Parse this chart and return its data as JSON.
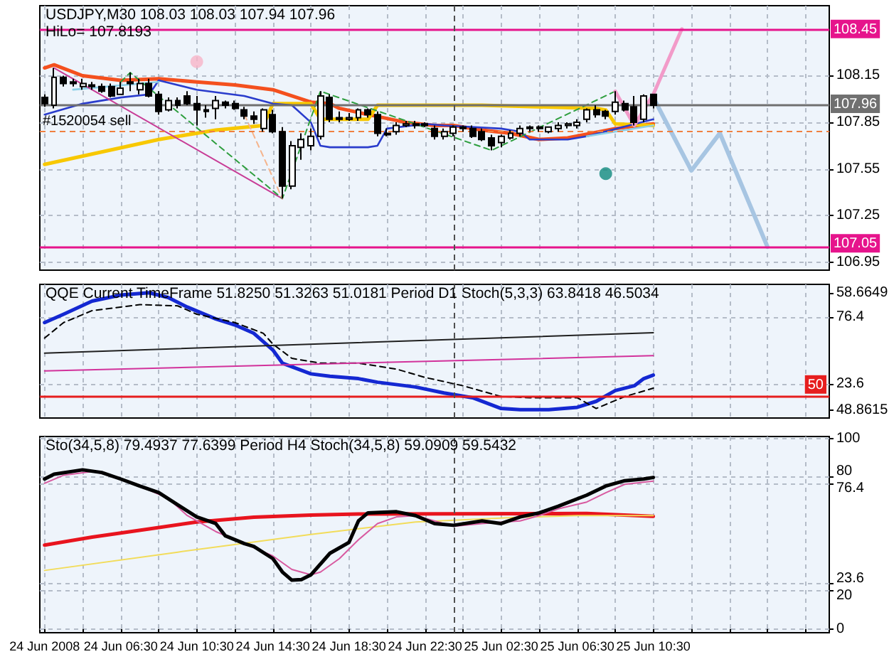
{
  "chart_data": [
    {
      "type": "candlestick",
      "title": "USDJPY,M30 108.03 108.03 107.94 107.96",
      "annotations": [
        "HiLo= 107.8193"
      ],
      "color": "#000000",
      "marker": "none",
      "grid": true,
      "tick_labels": "y",
      "x": [
        "2008-06-24T02:30",
        "2008-06-24T03:00",
        "2008-06-24T03:30",
        "2008-06-24T04:00",
        "2008-06-24T04:30",
        "2008-06-24T05:00",
        "2008-06-24T05:30",
        "2008-06-24T06:00",
        "2008-06-24T06:30",
        "2008-06-24T07:00",
        "2008-06-24T07:30",
        "2008-06-24T08:00",
        "2008-06-24T08:30",
        "2008-06-24T09:00",
        "2008-06-24T09:30",
        "2008-06-24T10:00",
        "2008-06-24T10:30",
        "2008-06-24T11:00",
        "2008-06-24T11:30",
        "2008-06-24T12:00",
        "2008-06-24T12:30",
        "2008-06-24T13:00",
        "2008-06-24T13:30",
        "2008-06-24T14:00",
        "2008-06-24T14:30",
        "2008-06-24T15:00",
        "2008-06-24T15:30",
        "2008-06-24T16:00",
        "2008-06-24T16:30",
        "2008-06-24T17:00",
        "2008-06-24T17:30",
        "2008-06-24T18:00",
        "2008-06-24T18:30",
        "2008-06-24T19:00",
        "2008-06-24T19:30",
        "2008-06-24T20:00",
        "2008-06-24T20:30",
        "2008-06-24T21:00",
        "2008-06-24T21:30",
        "2008-06-24T22:00",
        "2008-06-24T22:30",
        "2008-06-24T23:00",
        "2008-06-24T23:30",
        "2008-06-25T00:00",
        "2008-06-25T00:30",
        "2008-06-25T01:00",
        "2008-06-25T01:30",
        "2008-06-25T02:00",
        "2008-06-25T02:30",
        "2008-06-25T03:00",
        "2008-06-25T03:30",
        "2008-06-25T04:00",
        "2008-06-25T04:30",
        "2008-06-25T05:00",
        "2008-06-25T05:30",
        "2008-06-25T06:00",
        "2008-06-25T06:30",
        "2008-06-25T07:00",
        "2008-06-25T07:30",
        "2008-06-25T08:00",
        "2008-06-25T08:30",
        "2008-06-25T09:00",
        "2008-06-25T09:30",
        "2008-06-25T10:00",
        "2008-06-25T10:30"
      ],
      "ohlc": [
        [
          108.01,
          108.03,
          107.95,
          107.97
        ],
        [
          107.96,
          108.2,
          107.94,
          108.14
        ],
        [
          108.14,
          108.15,
          108.08,
          108.1
        ],
        [
          108.11,
          108.13,
          108.08,
          108.1
        ],
        [
          108.08,
          108.13,
          108.06,
          108.1
        ],
        [
          108.09,
          108.11,
          108.06,
          108.08
        ],
        [
          108.08,
          108.1,
          108.04,
          108.05
        ],
        [
          108.08,
          108.1,
          108.01,
          108.02
        ],
        [
          108.03,
          108.11,
          108.03,
          108.07
        ],
        [
          108.11,
          108.17,
          108.05,
          108.1
        ],
        [
          108.06,
          108.13,
          108.03,
          108.1
        ],
        [
          108.1,
          108.13,
          108.01,
          108.02
        ],
        [
          108.03,
          108.05,
          107.9,
          107.92
        ],
        [
          107.93,
          108.01,
          107.92,
          107.99
        ],
        [
          107.99,
          108.01,
          107.94,
          107.96
        ],
        [
          108.02,
          108.05,
          107.96,
          107.97
        ],
        [
          107.97,
          108.02,
          107.83,
          107.93
        ],
        [
          107.93,
          107.96,
          107.88,
          107.92
        ],
        [
          107.94,
          108.02,
          107.87,
          107.99
        ],
        [
          107.98,
          107.99,
          107.94,
          107.96
        ],
        [
          107.97,
          107.99,
          107.93,
          107.94
        ],
        [
          107.93,
          107.95,
          107.87,
          107.89
        ],
        [
          107.89,
          107.92,
          107.84,
          107.87
        ],
        [
          107.81,
          107.94,
          107.79,
          107.93
        ],
        [
          107.9,
          107.93,
          107.78,
          107.79
        ],
        [
          107.79,
          107.82,
          107.36,
          107.44
        ],
        [
          107.44,
          107.73,
          107.42,
          107.7
        ],
        [
          107.69,
          107.78,
          107.61,
          107.74
        ],
        [
          107.7,
          107.81,
          107.67,
          107.76
        ],
        [
          107.76,
          108.05,
          107.74,
          108.02
        ],
        [
          108.01,
          108.03,
          107.85,
          107.87
        ],
        [
          107.88,
          107.92,
          107.85,
          107.87
        ],
        [
          107.87,
          107.91,
          107.86,
          107.88
        ],
        [
          107.88,
          107.94,
          107.86,
          107.93
        ],
        [
          107.93,
          107.94,
          107.88,
          107.9
        ],
        [
          107.9,
          107.92,
          107.76,
          107.78
        ],
        [
          107.78,
          107.81,
          107.76,
          107.77
        ],
        [
          107.79,
          107.85,
          107.77,
          107.83
        ],
        [
          107.83,
          107.86,
          107.82,
          107.84
        ],
        [
          107.84,
          107.86,
          107.81,
          107.83
        ],
        [
          107.84,
          107.85,
          107.82,
          107.83
        ],
        [
          107.81,
          107.83,
          107.74,
          107.76
        ],
        [
          107.76,
          107.81,
          107.74,
          107.79
        ],
        [
          107.78,
          107.83,
          107.76,
          107.82
        ],
        [
          107.81,
          107.83,
          107.79,
          107.82
        ],
        [
          107.81,
          107.83,
          107.75,
          107.76
        ],
        [
          107.79,
          107.81,
          107.73,
          107.74
        ],
        [
          107.75,
          107.77,
          107.67,
          107.7
        ],
        [
          107.72,
          107.77,
          107.69,
          107.76
        ],
        [
          107.75,
          107.8,
          107.74,
          107.78
        ],
        [
          107.78,
          107.83,
          107.76,
          107.81
        ],
        [
          107.81,
          107.83,
          107.79,
          107.82
        ],
        [
          107.82,
          107.83,
          107.79,
          107.81
        ],
        [
          107.79,
          107.82,
          107.78,
          107.82
        ],
        [
          107.81,
          107.85,
          107.79,
          107.83
        ],
        [
          107.83,
          107.85,
          107.81,
          107.84
        ],
        [
          107.83,
          107.87,
          107.81,
          107.85
        ],
        [
          107.87,
          107.94,
          107.85,
          107.93
        ],
        [
          107.93,
          107.96,
          107.88,
          107.9
        ],
        [
          107.92,
          107.93,
          107.87,
          107.89
        ],
        [
          107.92,
          108.05,
          107.9,
          107.98
        ],
        [
          107.97,
          107.99,
          107.92,
          107.93
        ],
        [
          107.95,
          108.02,
          107.83,
          107.85
        ],
        [
          107.87,
          108.03,
          107.85,
          108.02
        ],
        [
          108.03,
          108.03,
          107.94,
          107.96
        ]
      ],
      "series": [
        {
          "type": "line",
          "color": "#f4501e",
          "x": [
            "2008-06-24T02:30",
            "2008-06-24T03:00",
            "2008-06-24T04:30",
            "2008-06-24T06:30",
            "2008-06-24T08:30",
            "2008-06-24T10:30",
            "2008-06-24T12:30",
            "2008-06-24T14:30",
            "2008-06-24T16:30",
            "2008-06-24T17:30",
            "2008-06-24T18:00",
            "2008-06-24T19:30",
            "2008-06-24T21:30",
            "2008-06-24T23:00",
            "2008-06-25T00:00",
            "2008-06-25T01:30",
            "2008-06-25T03:00",
            "2008-06-25T04:30",
            "2008-06-25T06:00",
            "2008-06-25T08:30",
            "2008-06-25T10:30"
          ],
          "values": [
            108.2,
            108.22,
            108.15,
            108.12,
            108.13,
            108.11,
            108.09,
            108.06,
            107.98,
            107.97,
            107.94,
            107.9,
            107.85,
            107.83,
            107.83,
            107.8,
            107.78,
            107.74,
            107.75,
            107.81,
            107.84
          ]
        },
        {
          "type": "line",
          "color": "#f8c800",
          "x": [
            "2008-06-24T02:30",
            "2008-06-24T05:30",
            "2008-06-24T08:30",
            "2008-06-24T11:30",
            "2008-06-24T14:00",
            "2008-06-24T14:30",
            "2008-06-24T16:30",
            "2008-06-24T17:00",
            "2008-06-24T19:30",
            "2008-06-24T20:00",
            "2008-06-25T01:30",
            "2008-06-25T07:30",
            "2008-06-25T08:00",
            "2008-06-25T08:30",
            "2008-06-25T10:30"
          ],
          "values": [
            107.58,
            107.66,
            107.74,
            107.8,
            107.83,
            107.97,
            107.97,
            107.87,
            107.87,
            107.96,
            107.96,
            107.94,
            107.93,
            107.84,
            107.83
          ]
        },
        {
          "type": "line",
          "color": "#2a3ccc",
          "x": [
            "2008-06-24T02:30",
            "2008-06-24T04:30",
            "2008-06-24T06:30",
            "2008-06-24T08:00",
            "2008-06-24T08:30",
            "2008-06-24T10:30",
            "2008-06-24T13:00",
            "2008-06-24T14:30",
            "2008-06-24T15:30",
            "2008-06-24T16:30",
            "2008-06-24T17:00",
            "2008-06-24T17:30",
            "2008-06-24T19:30",
            "2008-06-24T20:00",
            "2008-06-24T20:30",
            "2008-06-24T22:30",
            "2008-06-24T23:30",
            "2008-06-25T02:30",
            "2008-06-25T03:30",
            "2008-06-25T04:00",
            "2008-06-25T06:00",
            "2008-06-25T07:00",
            "2008-06-25T10:30"
          ],
          "values": [
            107.9,
            107.97,
            108.01,
            108.03,
            108.12,
            108.06,
            108.02,
            107.97,
            107.96,
            107.85,
            107.7,
            107.69,
            107.69,
            107.7,
            107.81,
            107.84,
            107.83,
            107.81,
            107.79,
            107.74,
            107.74,
            107.76,
            107.87
          ]
        },
        {
          "type": "line",
          "color": "#8ccfe6",
          "x": [
            "2008-06-24T04:00",
            "2008-06-24T08:30",
            "2008-06-24T09:00",
            "2008-06-25T07:00",
            "2008-06-25T10:30"
          ],
          "values": [
            108.06,
            108.11,
            null,
            107.76,
            107.83
          ]
        },
        {
          "type": "line",
          "color": "#c83c96",
          "x": [
            "2008-06-24T03:00",
            "2008-06-24T15:00"
          ],
          "values": [
            108.2,
            107.36
          ]
        },
        {
          "type": "line",
          "color": "#2e9e3e",
          "line_style": "dashed",
          "x": [
            "2008-06-24T06:30",
            "2008-06-24T07:00",
            "2008-06-24T15:00",
            "2008-06-24T17:00",
            "2008-06-25T02:00",
            "2008-06-25T08:30"
          ],
          "values": [
            108.11,
            108.17,
            107.36,
            108.05,
            107.67,
            108.05
          ]
        },
        {
          "type": "line",
          "color": "#f29bc9",
          "x": [
            "2008-06-25T08:30",
            "2008-06-25T09:30",
            "2008-06-25T10:30",
            "2008-06-25T12:00"
          ],
          "values": [
            108.05,
            107.83,
            108.03,
            108.45
          ]
        },
        {
          "type": "line",
          "color": "#a7c5e2",
          "x": [
            "2008-06-25T10:30",
            "2008-06-25T12:30",
            "2008-06-25T14:00",
            "2008-06-25T16:30"
          ],
          "values": [
            108.01,
            107.54,
            107.78,
            107.05
          ]
        },
        {
          "type": "line",
          "color": "#f5b48c",
          "line_style": "dashed",
          "x": [
            "2008-06-24T13:00",
            "2008-06-24T15:00"
          ],
          "values": [
            107.9,
            107.36
          ]
        },
        {
          "type": "scatter",
          "marker": "circle",
          "color": "#f8b4c8",
          "x": [
            "2008-06-24T10:30"
          ],
          "values": [
            108.24
          ]
        },
        {
          "type": "scatter",
          "marker": "circle",
          "color": "#0f8a7e",
          "x": [
            "2008-06-25T08:00"
          ],
          "values": [
            107.52
          ]
        }
      ],
      "xlim": [
        "2008-06-24T02:15",
        "2008-06-25T19:45"
      ],
      "xticks": [
        {
          "value": "2008-06-24T02:30",
          "label": null
        },
        {
          "value": "2008-06-24T04:30",
          "label": null
        },
        {
          "value": "2008-06-24T06:30",
          "label": null
        },
        {
          "value": "2008-06-24T08:30",
          "label": null
        },
        {
          "value": "2008-06-24T10:30",
          "label": null
        },
        {
          "value": "2008-06-24T12:30",
          "label": null
        },
        {
          "value": "2008-06-24T14:30",
          "label": null
        },
        {
          "value": "2008-06-24T16:30",
          "label": null
        },
        {
          "value": "2008-06-24T18:30",
          "label": null
        },
        {
          "value": "2008-06-24T20:30",
          "label": null
        },
        {
          "value": "2008-06-24T22:30",
          "label": null
        },
        {
          "value": "2008-06-25T00:30",
          "label": null
        },
        {
          "value": "2008-06-25T02:30",
          "label": null
        },
        {
          "value": "2008-06-25T04:30",
          "label": null
        },
        {
          "value": "2008-06-25T06:30",
          "label": null
        },
        {
          "value": "2008-06-25T08:30",
          "label": null
        },
        {
          "value": "2008-06-25T10:30",
          "label": null
        },
        {
          "value": "2008-06-25T12:30",
          "label": null
        },
        {
          "value": "2008-06-25T14:30",
          "label": null
        },
        {
          "value": "2008-06-25T16:30",
          "label": null
        },
        {
          "value": "2008-06-25T18:30",
          "label": null
        }
      ],
      "ylim": [
        106.9,
        108.6
      ],
      "yticks": [
        106.95,
        107.25,
        107.55,
        107.85,
        108.15
      ],
      "ref_lines": [
        {
          "axis": "y",
          "value": 108.45,
          "label": "108.45",
          "color": "#e6148c"
        },
        {
          "axis": "y",
          "value": 107.96,
          "label": "107.96",
          "color": "#707070"
        },
        {
          "axis": "y",
          "value": 107.79,
          "label": "#1520054 sell",
          "color": "#f08040",
          "line_style": "dashed"
        },
        {
          "axis": "y",
          "value": 107.05,
          "label": "107.05",
          "color": "#e6148c"
        },
        {
          "axis": "x",
          "value": "2008-06-25T00:00",
          "color": "#505050",
          "line_style": "dashed"
        }
      ]
    },
    {
      "type": "line",
      "title": "QQE Current TimeFrame 51.8250 51.3263 51.0181 Period D1 Stoch(5,3,3) 63.8418 46.5034",
      "marker": "none",
      "grid": true,
      "tick_labels": "y",
      "series": [
        {
          "color": "#1428d2",
          "axis": "y2",
          "x": [
            "2008-06-24T02:30",
            "2008-06-24T03:30",
            "2008-06-24T05:00",
            "2008-06-24T06:30",
            "2008-06-24T08:00",
            "2008-06-24T09:00",
            "2008-06-24T10:00",
            "2008-06-24T11:30",
            "2008-06-24T12:30",
            "2008-06-24T13:30",
            "2008-06-24T14:30",
            "2008-06-24T15:00",
            "2008-06-24T16:30",
            "2008-06-24T17:30",
            "2008-06-24T19:00",
            "2008-06-24T20:00",
            "2008-06-24T22:00",
            "2008-06-24T23:30",
            "2008-06-25T01:00",
            "2008-06-25T02:30",
            "2008-06-25T03:30",
            "2008-06-25T05:00",
            "2008-06-25T06:30",
            "2008-06-25T07:30",
            "2008-06-25T08:30",
            "2008-06-25T09:30",
            "2008-06-25T10:00",
            "2008-06-25T10:30"
          ],
          "values": [
            56.2,
            56.9,
            58.0,
            58.5,
            58.7,
            58.3,
            57.5,
            56.5,
            56.0,
            55.3,
            53.9,
            52.8,
            51.9,
            51.7,
            51.5,
            51.2,
            50.8,
            50.3,
            49.9,
            49.0,
            48.9,
            48.9,
            49.1,
            49.6,
            50.5,
            50.9,
            51.5,
            51.8
          ]
        },
        {
          "color": "#000000",
          "axis": "y2",
          "line_style": "dashed",
          "x": [
            "2008-06-24T02:30",
            "2008-06-24T03:30",
            "2008-06-24T05:00",
            "2008-06-24T07:30",
            "2008-06-24T09:30",
            "2008-06-24T10:30",
            "2008-06-24T12:30",
            "2008-06-24T14:00",
            "2008-06-24T14:30",
            "2008-06-24T15:30",
            "2008-06-24T17:00",
            "2008-06-24T19:00",
            "2008-06-24T21:00",
            "2008-06-24T22:30",
            "2008-06-25T00:30",
            "2008-06-25T02:30",
            "2008-06-25T04:00",
            "2008-06-25T06:30",
            "2008-06-25T07:30",
            "2008-06-25T09:00",
            "2008-06-25T10:30"
          ],
          "values": [
            54.9,
            56.2,
            57.2,
            57.7,
            57.6,
            56.9,
            56.2,
            55.3,
            54.4,
            53.2,
            52.8,
            52.8,
            52.3,
            51.6,
            50.9,
            50.0,
            49.9,
            49.9,
            49.0,
            50.0,
            50.7
          ]
        },
        {
          "color": "#202020",
          "x": [
            "2008-06-24T02:30",
            "2008-06-25T10:30"
          ],
          "values": [
            48,
            64
          ]
        },
        {
          "color": "#d2329b",
          "x": [
            "2008-06-24T02:30",
            "2008-06-25T10:30"
          ],
          "values": [
            34,
            46
          ]
        }
      ],
      "xlim": [
        "2008-06-24T02:15",
        "2008-06-25T19:45"
      ],
      "xticks": [
        {
          "value": "2008-06-24T02:30",
          "label": null
        },
        {
          "value": "2008-06-24T04:30",
          "label": null
        },
        {
          "value": "2008-06-24T06:30",
          "label": null
        },
        {
          "value": "2008-06-24T08:30",
          "label": null
        },
        {
          "value": "2008-06-24T10:30",
          "label": null
        },
        {
          "value": "2008-06-24T12:30",
          "label": null
        },
        {
          "value": "2008-06-24T14:30",
          "label": null
        },
        {
          "value": "2008-06-24T16:30",
          "label": null
        },
        {
          "value": "2008-06-24T18:30",
          "label": null
        },
        {
          "value": "2008-06-24T20:30",
          "label": null
        },
        {
          "value": "2008-06-24T22:30",
          "label": null
        },
        {
          "value": "2008-06-25T00:30",
          "label": null
        },
        {
          "value": "2008-06-25T02:30",
          "label": null
        },
        {
          "value": "2008-06-25T04:30",
          "label": null
        },
        {
          "value": "2008-06-25T06:30",
          "label": null
        },
        {
          "value": "2008-06-25T08:30",
          "label": null
        },
        {
          "value": "2008-06-25T10:30",
          "label": null
        },
        {
          "value": "2008-06-25T12:30",
          "label": null
        },
        {
          "value": "2008-06-25T14:30",
          "label": null
        },
        {
          "value": "2008-06-25T16:30",
          "label": null
        },
        {
          "value": "2008-06-25T18:30",
          "label": null
        }
      ],
      "ylim": [
        -3,
        102
      ],
      "yticks": [
        23.6,
        76.4
      ],
      "y2lim": [
        48.2,
        59.4
      ],
      "y2ticks": [
        48.8615,
        58.6649
      ],
      "ref_lines": [
        {
          "axis": "y2",
          "value": 50,
          "label": "50",
          "color": "#e61e1e"
        },
        {
          "axis": "x",
          "value": "2008-06-25T00:00",
          "color": "#505050",
          "line_style": "dashed"
        }
      ]
    },
    {
      "type": "line",
      "title": "Sto(34,5,8) 79.4937 77.6399 Period H4 Stoch(34,5,8) 59.0909 59.5432",
      "marker": "none",
      "grid": true,
      "series": [
        {
          "color": "#e8141e",
          "x": [
            "2008-06-24T02:30",
            "2008-06-24T05:00",
            "2008-06-24T08:00",
            "2008-06-24T10:30",
            "2008-06-24T13:30",
            "2008-06-24T16:30",
            "2008-06-24T19:00",
            "2008-06-25T07:00",
            "2008-06-25T10:30"
          ],
          "values": [
            44.0,
            48.2,
            52.5,
            56.1,
            58.6,
            59.8,
            60.3,
            60.6,
            59.1
          ]
        },
        {
          "color": "#f2dc5a",
          "x": [
            "2008-06-24T02:30",
            "2008-06-24T09:30",
            "2008-06-24T16:30",
            "2008-06-24T22:00",
            "2008-06-25T03:30",
            "2008-06-25T06:30",
            "2008-06-25T10:30"
          ],
          "values": [
            30.7,
            40.3,
            49.6,
            56.1,
            58.6,
            59.5,
            59.5
          ]
        },
        {
          "color": "#d85aa0",
          "x": [
            "2008-06-24T02:30",
            "2008-06-24T03:30",
            "2008-06-24T05:00",
            "2008-06-24T06:00",
            "2008-06-24T07:30",
            "2008-06-24T09:00",
            "2008-06-24T10:00",
            "2008-06-24T11:30",
            "2008-06-24T13:00",
            "2008-06-24T14:30",
            "2008-06-24T15:30",
            "2008-06-24T16:30",
            "2008-06-24T17:00",
            "2008-06-24T18:00",
            "2008-06-24T19:00",
            "2008-06-24T20:00",
            "2008-06-24T21:00",
            "2008-06-24T22:00",
            "2008-06-24T23:00",
            "2008-06-25T00:00",
            "2008-06-25T01:30",
            "2008-06-25T02:30",
            "2008-06-25T03:30",
            "2008-06-25T04:30",
            "2008-06-25T05:30",
            "2008-06-25T07:00",
            "2008-06-25T08:00",
            "2008-06-25T09:00",
            "2008-06-25T10:30"
          ],
          "values": [
            76.4,
            80.7,
            82.6,
            80.7,
            75.0,
            68.5,
            59.5,
            51.1,
            44.8,
            38.3,
            31.2,
            28.4,
            29.8,
            36.9,
            46.8,
            55.3,
            58.8,
            59.5,
            56.7,
            53.9,
            55.3,
            56.0,
            56.7,
            59.5,
            63.0,
            66.6,
            71.5,
            75.9,
            77.6
          ]
        },
        {
          "color": "#000000",
          "x": [
            "2008-06-24T02:30",
            "2008-06-24T03:00",
            "2008-06-24T04:30",
            "2008-06-24T05:30",
            "2008-06-24T06:30",
            "2008-06-24T07:30",
            "2008-06-24T08:30",
            "2008-06-24T09:30",
            "2008-06-24T10:30",
            "2008-06-24T11:30",
            "2008-06-24T12:00",
            "2008-06-24T13:00",
            "2008-06-24T13:30",
            "2008-06-24T14:30",
            "2008-06-24T15:00",
            "2008-06-24T15:30",
            "2008-06-24T16:00",
            "2008-06-24T16:30",
            "2008-06-24T17:30",
            "2008-06-24T18:30",
            "2008-06-24T19:00",
            "2008-06-24T19:30",
            "2008-06-24T21:00",
            "2008-06-24T22:00",
            "2008-06-24T23:00",
            "2008-06-25T00:00",
            "2008-06-25T01:30",
            "2008-06-25T02:30",
            "2008-06-25T03:30",
            "2008-06-25T04:30",
            "2008-06-25T05:30",
            "2008-06-25T07:00",
            "2008-06-25T08:00",
            "2008-06-25T09:00",
            "2008-06-25T10:00",
            "2008-06-25T10:30"
          ],
          "values": [
            78.7,
            81.2,
            83.5,
            82.1,
            78.7,
            75.0,
            71.6,
            65.1,
            58.8,
            55.3,
            48.9,
            44.8,
            43.3,
            36.9,
            29.9,
            25.6,
            25.9,
            28.4,
            39.7,
            45.4,
            56.7,
            60.9,
            61.5,
            59.5,
            55.3,
            54.4,
            56.7,
            55.3,
            58.8,
            60.9,
            64.4,
            70.2,
            75.0,
            77.8,
            78.7,
            79.5
          ]
        }
      ],
      "xlim": [
        "2008-06-24T02:15",
        "2008-06-25T19:45"
      ],
      "xticks": [
        {
          "value": "2008-06-24T02:30",
          "label": "24 Jun 2008"
        },
        {
          "value": "2008-06-24T04:30",
          "label": null
        },
        {
          "value": "2008-06-24T06:30",
          "label": "24 Jun 06:30"
        },
        {
          "value": "2008-06-24T08:30",
          "label": null
        },
        {
          "value": "2008-06-24T10:30",
          "label": "24 Jun 10:30"
        },
        {
          "value": "2008-06-24T12:30",
          "label": null
        },
        {
          "value": "2008-06-24T14:30",
          "label": "24 Jun 14:30"
        },
        {
          "value": "2008-06-24T16:30",
          "label": null
        },
        {
          "value": "2008-06-24T18:30",
          "label": "24 Jun 18:30"
        },
        {
          "value": "2008-06-24T20:30",
          "label": null
        },
        {
          "value": "2008-06-24T22:30",
          "label": "24 Jun 22:30"
        },
        {
          "value": "2008-06-25T00:30",
          "label": null
        },
        {
          "value": "2008-06-25T02:30",
          "label": "25 Jun 02:30"
        },
        {
          "value": "2008-06-25T04:30",
          "label": null
        },
        {
          "value": "2008-06-25T06:30",
          "label": "25 Jun 06:30"
        },
        {
          "value": "2008-06-25T08:30",
          "label": null
        },
        {
          "value": "2008-06-25T10:30",
          "label": "25 Jun 10:30"
        },
        {
          "value": "2008-06-25T12:30",
          "label": null
        },
        {
          "value": "2008-06-25T14:30",
          "label": null
        },
        {
          "value": "2008-06-25T16:30",
          "label": null
        },
        {
          "value": "2008-06-25T18:30",
          "label": null
        }
      ],
      "ylim": [
        -2,
        101
      ],
      "yticks": [
        0,
        20,
        23.6,
        76.4,
        80,
        100
      ],
      "ref_lines": [
        {
          "axis": "x",
          "value": "2008-06-25T00:00",
          "color": "#505050",
          "line_style": "dashed"
        }
      ]
    }
  ]
}
